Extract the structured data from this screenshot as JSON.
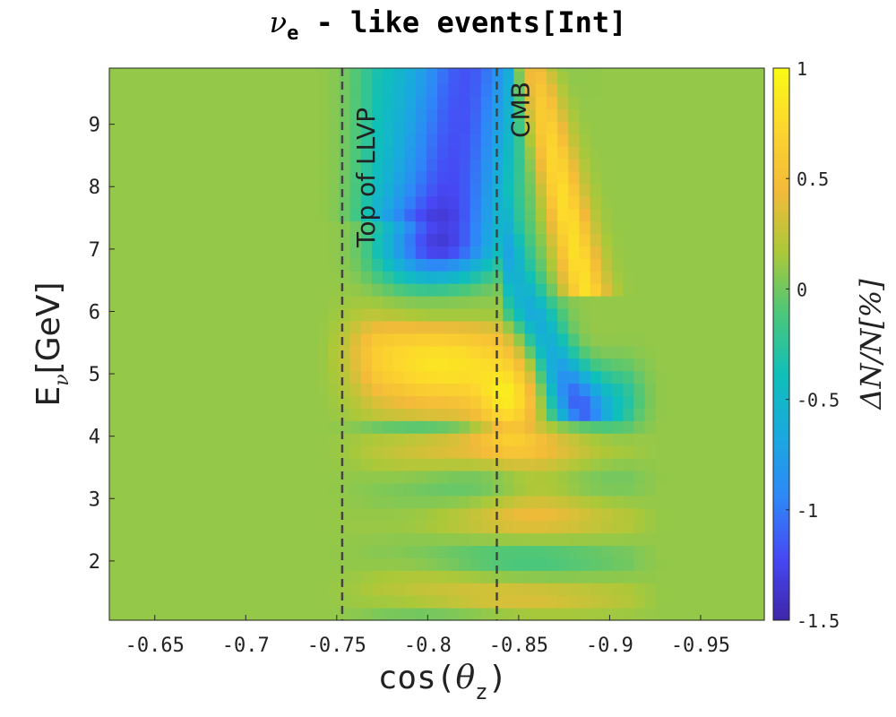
{
  "chart_data": {
    "type": "heatmap",
    "title": {
      "prefix": "ν",
      "sub": "e",
      "suffix": " - like events[Int]"
    },
    "xlabel": {
      "prefix": "cos(",
      "symbol": "θ",
      "sub": "z",
      "suffix": ")"
    },
    "ylabel": {
      "prefix": "E",
      "sub": "ν",
      "suffix": "[GeV]"
    },
    "colorbar_label": "ΔN/N[%]",
    "xlim": [
      -0.625,
      -0.985
    ],
    "ylim": [
      1.05,
      9.9
    ],
    "x_ticks": [
      -0.65,
      -0.7,
      -0.75,
      -0.8,
      -0.85,
      -0.9,
      -0.95
    ],
    "x_tick_labels": [
      "-0.65",
      "-0.7",
      "-0.75",
      "-0.8",
      "-0.85",
      "-0.9",
      "-0.95"
    ],
    "y_ticks": [
      2,
      3,
      4,
      5,
      6,
      7,
      8,
      9
    ],
    "y_tick_labels": [
      "2",
      "3",
      "4",
      "5",
      "6",
      "7",
      "8",
      "9"
    ],
    "clim": [
      -1.5,
      1
    ],
    "colorbar_ticks": [
      1,
      0.5,
      0,
      -0.5,
      -1,
      -1.5
    ],
    "colorbar_tick_labels": [
      "1",
      "0.5",
      "0",
      "-0.5",
      "-1",
      "-1.5"
    ],
    "colormap": "parula",
    "colormap_stops": [
      "#3e26a8",
      "#4748f4",
      "#2e87f7",
      "#1aa9df",
      "#0fbfb9",
      "#4cc77a",
      "#abc839",
      "#f3ba39",
      "#fcd52e",
      "#f9fb15"
    ],
    "background_value": 0.1,
    "grid": false,
    "annotations": [
      {
        "label": "Top of LLVP",
        "x": -0.753,
        "line_style": "dashed"
      },
      {
        "label": "CMB",
        "x": -0.838,
        "line_style": "dashed"
      }
    ],
    "features": [
      {
        "region": "blue band near core boundary",
        "x_range": [
          -0.77,
          -0.84
        ],
        "y_range": [
          6.2,
          9.9
        ],
        "approx_value": -1.2
      },
      {
        "region": "yellow band above CMB",
        "x_range": [
          -0.85,
          -0.9
        ],
        "y_range": [
          6.5,
          9.5
        ],
        "approx_value": 0.6
      },
      {
        "region": "blue diagonal ridge",
        "x_range": [
          -0.85,
          -0.91
        ],
        "y_range": [
          4.3,
          7.5
        ],
        "approx_value": -0.9
      },
      {
        "region": "yellow lobe",
        "x_range": [
          -0.77,
          -0.84
        ],
        "y_range": [
          4.6,
          6.0
        ],
        "approx_value": 0.7
      },
      {
        "region": "yellow spot at CMB",
        "x_range": [
          -0.835,
          -0.85
        ],
        "y_range": [
          4.2,
          5.0
        ],
        "approx_value": 0.7
      },
      {
        "region": "low-energy bands",
        "x_range": [
          -0.76,
          -0.92
        ],
        "y_range": [
          1.05,
          4.0
        ],
        "approx_value": "±0.3 alternating"
      }
    ]
  }
}
